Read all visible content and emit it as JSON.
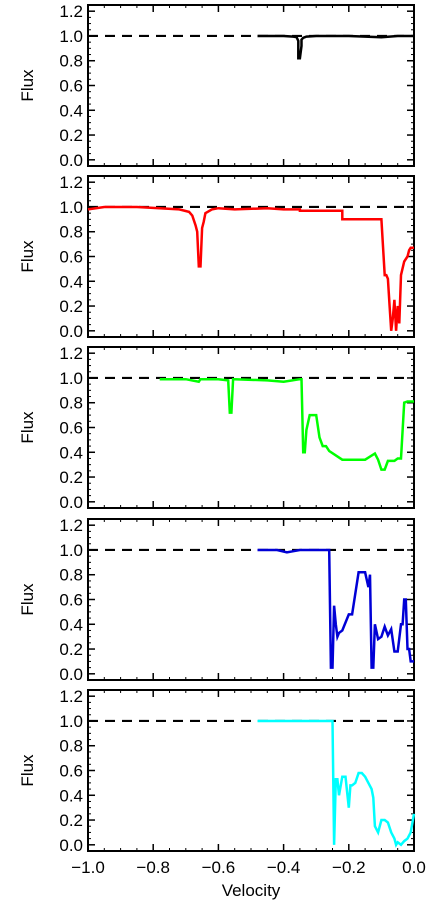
{
  "chart_data": [
    {
      "type": "line",
      "color": "#000000",
      "ylabel": "Flux",
      "xlim": [
        -1.0,
        0.0
      ],
      "ylim": [
        -0.05,
        1.25
      ],
      "yticks": [
        "0.0",
        "0.2",
        "0.4",
        "0.6",
        "0.8",
        "1.0",
        "1.2"
      ],
      "reference_line": 1.0,
      "x": [
        -0.48,
        -0.4,
        -0.37,
        -0.36,
        -0.355,
        -0.355,
        -0.35,
        -0.345,
        -0.345,
        -0.34,
        -0.33,
        -0.3,
        -0.2,
        -0.1,
        -0.05,
        0.0
      ],
      "y": [
        1.0,
        1.0,
        0.995,
        0.99,
        0.96,
        0.82,
        0.82,
        0.92,
        0.97,
        0.985,
        0.995,
        1.0,
        1.0,
        0.99,
        1.0,
        1.0
      ]
    },
    {
      "type": "line",
      "color": "#ff0000",
      "ylabel": "Flux",
      "xlim": [
        -1.0,
        0.0
      ],
      "ylim": [
        -0.05,
        1.25
      ],
      "yticks": [
        "0.0",
        "0.2",
        "0.4",
        "0.6",
        "0.8",
        "1.0",
        "1.2"
      ],
      "reference_line": 1.0,
      "x": [
        -1.0,
        -0.95,
        -0.85,
        -0.78,
        -0.72,
        -0.69,
        -0.68,
        -0.67,
        -0.665,
        -0.66,
        -0.655,
        -0.65,
        -0.645,
        -0.64,
        -0.62,
        -0.6,
        -0.55,
        -0.45,
        -0.4,
        -0.35,
        -0.35,
        -0.3,
        -0.22,
        -0.22,
        -0.1,
        -0.09,
        -0.085,
        -0.08,
        -0.075,
        -0.07,
        -0.065,
        -0.06,
        -0.055,
        -0.05,
        -0.045,
        -0.04,
        -0.03,
        -0.02,
        -0.015,
        -0.01,
        0.0
      ],
      "y": [
        0.98,
        1.0,
        1.0,
        0.99,
        0.98,
        0.96,
        0.93,
        0.85,
        0.8,
        0.52,
        0.52,
        0.83,
        0.88,
        0.95,
        0.98,
        0.99,
        0.98,
        0.99,
        0.98,
        0.98,
        0.97,
        0.97,
        0.97,
        0.9,
        0.9,
        0.45,
        0.45,
        0.42,
        0.2,
        0.0,
        0.1,
        0.25,
        0.0,
        0.2,
        0.06,
        0.45,
        0.56,
        0.6,
        0.65,
        0.67,
        0.67
      ]
    },
    {
      "type": "line",
      "color": "#00ff00",
      "ylabel": "Flux",
      "xlim": [
        -1.0,
        0.0
      ],
      "ylim": [
        -0.05,
        1.25
      ],
      "yticks": [
        "0.0",
        "0.2",
        "0.4",
        "0.6",
        "0.8",
        "1.0",
        "1.2"
      ],
      "reference_line": 1.0,
      "x": [
        -0.78,
        -0.7,
        -0.66,
        -0.655,
        -0.65,
        -0.6,
        -0.57,
        -0.565,
        -0.56,
        -0.555,
        -0.55,
        -0.45,
        -0.4,
        -0.35,
        -0.345,
        -0.34,
        -0.335,
        -0.33,
        -0.32,
        -0.3,
        -0.29,
        -0.28,
        -0.27,
        -0.26,
        -0.22,
        -0.2,
        -0.15,
        -0.12,
        -0.11,
        -0.1,
        -0.09,
        -0.08,
        -0.06,
        -0.05,
        -0.04,
        -0.03,
        -0.02,
        0.0
      ],
      "y": [
        0.99,
        0.99,
        0.97,
        0.99,
        0.99,
        0.99,
        0.98,
        0.72,
        0.72,
        0.99,
        0.99,
        0.98,
        0.97,
        0.99,
        0.99,
        0.4,
        0.4,
        0.58,
        0.7,
        0.7,
        0.52,
        0.45,
        0.45,
        0.41,
        0.34,
        0.34,
        0.34,
        0.39,
        0.34,
        0.26,
        0.26,
        0.33,
        0.33,
        0.35,
        0.35,
        0.8,
        0.81,
        0.81
      ]
    },
    {
      "type": "line",
      "color": "#0000d6",
      "ylabel": "Flux",
      "xlim": [
        -1.0,
        0.0
      ],
      "ylim": [
        -0.05,
        1.25
      ],
      "yticks": [
        "0.0",
        "0.2",
        "0.4",
        "0.6",
        "0.8",
        "1.0",
        "1.2"
      ],
      "reference_line": 1.0,
      "x": [
        -0.48,
        -0.42,
        -0.39,
        -0.37,
        -0.35,
        -0.3,
        -0.26,
        -0.255,
        -0.25,
        -0.245,
        -0.24,
        -0.235,
        -0.23,
        -0.22,
        -0.2,
        -0.19,
        -0.17,
        -0.15,
        -0.14,
        -0.135,
        -0.13,
        -0.125,
        -0.12,
        -0.11,
        -0.1,
        -0.09,
        -0.08,
        -0.07,
        -0.06,
        -0.05,
        -0.04,
        -0.035,
        -0.03,
        -0.025,
        -0.02,
        -0.015,
        -0.01,
        0.0
      ],
      "y": [
        1.0,
        1.0,
        0.98,
        0.99,
        1.0,
        1.0,
        1.0,
        0.05,
        0.05,
        0.55,
        0.4,
        0.3,
        0.33,
        0.35,
        0.48,
        0.48,
        0.82,
        0.82,
        0.7,
        0.8,
        0.05,
        0.05,
        0.4,
        0.28,
        0.3,
        0.38,
        0.31,
        0.36,
        0.18,
        0.18,
        0.4,
        0.4,
        0.6,
        0.6,
        0.2,
        0.2,
        0.1,
        0.1
      ]
    },
    {
      "type": "line",
      "color": "#00ffff",
      "ylabel": "Flux",
      "xlabel": "Velocity",
      "xlim": [
        -1.0,
        0.0
      ],
      "xticks": [
        "−1.0",
        "−0.8",
        "−0.6",
        "−0.4",
        "−0.2",
        "0.0"
      ],
      "ylim": [
        -0.05,
        1.25
      ],
      "yticks": [
        "0.0",
        "0.2",
        "0.4",
        "0.6",
        "0.8",
        "1.0",
        "1.2"
      ],
      "reference_line": 1.0,
      "x": [
        -0.48,
        -0.4,
        -0.3,
        -0.25,
        -0.245,
        -0.24,
        -0.235,
        -0.23,
        -0.22,
        -0.21,
        -0.2,
        -0.195,
        -0.19,
        -0.18,
        -0.17,
        -0.16,
        -0.15,
        -0.13,
        -0.125,
        -0.12,
        -0.11,
        -0.1,
        -0.09,
        -0.08,
        -0.07,
        -0.06,
        -0.055,
        -0.05,
        -0.04,
        -0.03,
        -0.02,
        -0.01,
        0.0
      ],
      "y": [
        1.0,
        1.0,
        1.0,
        1.0,
        0.0,
        0.53,
        0.53,
        0.4,
        0.55,
        0.55,
        0.3,
        0.48,
        0.48,
        0.5,
        0.58,
        0.58,
        0.55,
        0.45,
        0.38,
        0.15,
        0.1,
        0.2,
        0.2,
        0.18,
        0.1,
        0.05,
        0.0,
        0.02,
        0.0,
        0.03,
        0.05,
        0.1,
        0.25
      ]
    }
  ]
}
